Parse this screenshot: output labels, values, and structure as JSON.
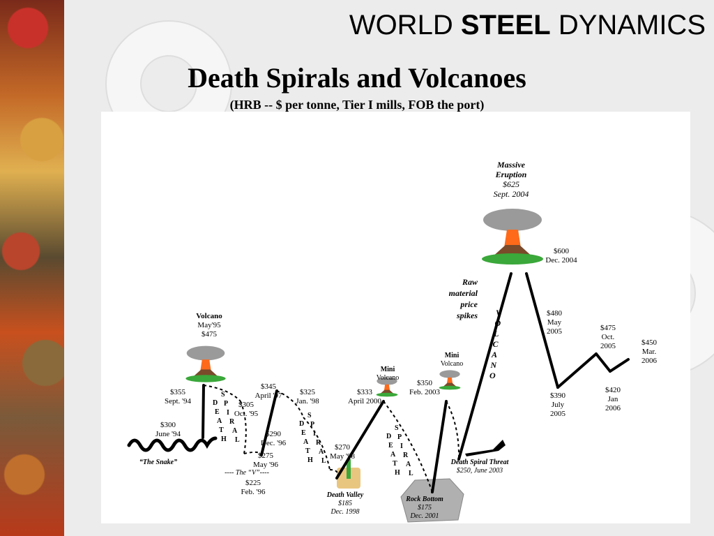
{
  "header": {
    "brand_word1": "WORLD",
    "brand_word2": "STEEL",
    "brand_word3": "DYNAMICS",
    "title": "Death Spirals and Volcanoes",
    "subtitle": "(HRB -- $ per tonne, Tier I mills, FOB the port)"
  },
  "colors": {
    "line": "#000000",
    "lava": "#ff6a1a",
    "ash": "#9a9a9a",
    "grass": "#3aa83a",
    "rock": "#b0b0b0"
  },
  "chart_data": {
    "type": "line",
    "title": "Death Spirals and Volcanoes",
    "subtitle": "(HRB -- $ per tonne, Tier I mills, FOB the port)",
    "unit": "$ per tonne",
    "series": [
      {
        "values": [
          {
            "date": "June '94",
            "value": 300
          },
          {
            "date": "Sept. '94",
            "value": 355
          },
          {
            "date": "May'95",
            "value": 475
          },
          {
            "date": "Oct. '95",
            "value": 305
          },
          {
            "date": "Feb. '96",
            "value": 225
          },
          {
            "date": "May '96",
            "value": 275
          },
          {
            "date": "April '97",
            "value": 345
          },
          {
            "date": "Jan. '98",
            "value": 325
          },
          {
            "date": "May '98",
            "value": 270
          },
          {
            "date": "Dec. 1998",
            "value": 185
          },
          {
            "date": "April 2000",
            "value": 333
          },
          {
            "date": "Dec. 2001",
            "value": 175
          },
          {
            "date": "Feb. 2003",
            "value": 350
          },
          {
            "date": "June 2003",
            "value": 250
          },
          {
            "date": "Sept. 2004",
            "value": 625
          },
          {
            "date": "Dec. 2004",
            "value": 600
          },
          {
            "date": "May 2005",
            "value": 480
          },
          {
            "date": "July 2005",
            "value": 390
          },
          {
            "date": "Oct. 2005",
            "value": 475
          },
          {
            "date": "Jan 2006",
            "value": 420
          },
          {
            "date": "Mar. 2006",
            "value": 450
          }
        ]
      }
    ],
    "point_labels": [
      {
        "id": "p-jun94",
        "lines": [
          "$300",
          "June '94"
        ]
      },
      {
        "id": "p-sep94",
        "lines": [
          "$355",
          "Sept. '94"
        ]
      },
      {
        "id": "p-may95",
        "lines": [
          "Volcano",
          "May'95",
          "$475"
        ]
      },
      {
        "id": "p-oct95",
        "lines": [
          "$305",
          "Oct. '95"
        ]
      },
      {
        "id": "p-feb96",
        "lines": [
          "$225",
          "Feb. '96"
        ]
      },
      {
        "id": "p-may96",
        "lines": [
          "$275",
          "May '96"
        ]
      },
      {
        "id": "p-dec96",
        "lines": [
          "$290",
          "Dec. '96"
        ]
      },
      {
        "id": "p-apr97",
        "lines": [
          "$345",
          "April '97"
        ]
      },
      {
        "id": "p-jan98",
        "lines": [
          "$325",
          "Jan. '98"
        ]
      },
      {
        "id": "p-may98",
        "lines": [
          "$270",
          "May '98"
        ]
      },
      {
        "id": "p-dec98",
        "lines": [
          "Death Valley",
          "$185",
          "Dec. 1998"
        ]
      },
      {
        "id": "p-apr00",
        "lines": [
          "$333",
          "April 2000"
        ]
      },
      {
        "id": "p-minivol1",
        "lines": [
          "Mini",
          "Volcano"
        ]
      },
      {
        "id": "p-dec01",
        "lines": [
          "Rock Bottom",
          "$175",
          "Dec. 2001"
        ]
      },
      {
        "id": "p-feb03",
        "lines": [
          "$350",
          "Feb. 2003"
        ]
      },
      {
        "id": "p-minivol2",
        "lines": [
          "Mini",
          "Volcano"
        ]
      },
      {
        "id": "p-jun03",
        "lines": [
          "Death Spiral Threat",
          "$250, June 2003"
        ]
      },
      {
        "id": "p-sep04",
        "lines": [
          "Massive",
          "Eruption",
          "$625",
          "Sept. 2004"
        ]
      },
      {
        "id": "p-dec04",
        "lines": [
          "$600",
          "Dec. 2004"
        ]
      },
      {
        "id": "p-may05",
        "lines": [
          "$480",
          "May",
          "2005"
        ]
      },
      {
        "id": "p-jul05",
        "lines": [
          "$390",
          "July",
          "2005"
        ]
      },
      {
        "id": "p-oct05",
        "lines": [
          "$475",
          "Oct.",
          "2005"
        ]
      },
      {
        "id": "p-jan06",
        "lines": [
          "$420",
          "Jan",
          "2006"
        ]
      },
      {
        "id": "p-mar06",
        "lines": [
          "$450",
          "Mar.",
          "2006"
        ]
      }
    ],
    "annotations": {
      "snake": "“The Snake”",
      "v_label": "---- The “V”----",
      "raw_material": [
        "Raw",
        "material",
        "price",
        "spikes"
      ],
      "death_spiral_word": "DEATH SPIRAL",
      "volcano_word": "VOLCANO"
    }
  }
}
